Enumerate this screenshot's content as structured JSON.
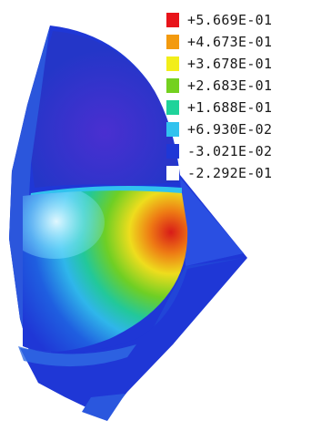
{
  "legend": {
    "items": [
      {
        "label": "+5.669E-01",
        "color": "#e8141a"
      },
      {
        "label": "+4.673E-01",
        "color": "#f39a0e"
      },
      {
        "label": "+3.678E-01",
        "color": "#f2ee1a"
      },
      {
        "label": "+2.683E-01",
        "color": "#74d11f"
      },
      {
        "label": "+1.688E-01",
        "color": "#1fd39a"
      },
      {
        "label": "+6.930E-02",
        "color": "#31c2ee"
      },
      {
        "label": "-3.021E-02",
        "color": "#1f37d6"
      },
      {
        "label": "-2.292E-01",
        "color": "#ffffff"
      }
    ]
  }
}
